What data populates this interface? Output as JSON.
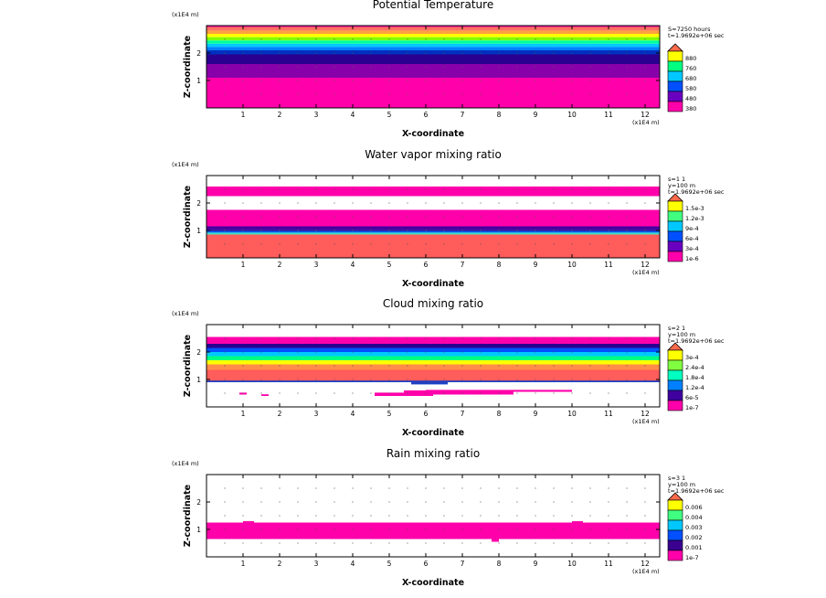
{
  "chart_data": [
    {
      "type": "heatmap",
      "title": "Potential Temperature",
      "xlabel": "X-coordinate",
      "ylabel": "Z-coordinate",
      "x_unit": "(x1E4 m)",
      "y_unit": "(x1E4 m)",
      "xlim": [
        0,
        12.4
      ],
      "ylim": [
        0,
        3.0
      ],
      "x_ticks": [
        1,
        2,
        3,
        4,
        5,
        6,
        7,
        8,
        9,
        10,
        11,
        12
      ],
      "y_ticks": [
        1,
        2
      ],
      "info": [
        "S=7250 hours",
        "t=1.9692e+06 sec"
      ],
      "levels": [
        "880",
        "760",
        "680",
        "580",
        "480",
        "380"
      ],
      "level_colors": [
        "#ffff00",
        "#00ff80",
        "#00c8ff",
        "#0050ff",
        "#6a00c0",
        "#ff00aa"
      ],
      "cap_color": "#ff6a4a",
      "bands": [
        {
          "z0": 0.0,
          "z1": 1.1,
          "color": "#ff00aa"
        },
        {
          "z0": 1.1,
          "z1": 1.6,
          "color": "#8800aa"
        },
        {
          "z0": 1.6,
          "z1": 1.95,
          "color": "#2a0090"
        },
        {
          "z0": 1.95,
          "z1": 2.1,
          "color": "#0030c0"
        },
        {
          "z0": 2.1,
          "z1": 2.22,
          "color": "#0080ff"
        },
        {
          "z0": 2.22,
          "z1": 2.34,
          "color": "#00c8ff"
        },
        {
          "z0": 2.34,
          "z1": 2.46,
          "color": "#00ffa0"
        },
        {
          "z0": 2.46,
          "z1": 2.58,
          "color": "#80ff00"
        },
        {
          "z0": 2.58,
          "z1": 2.7,
          "color": "#ffff00"
        },
        {
          "z0": 2.7,
          "z1": 2.82,
          "color": "#ffa040"
        },
        {
          "z0": 2.82,
          "z1": 2.95,
          "color": "#ff7060"
        },
        {
          "z0": 2.95,
          "z1": 3.0,
          "color": "#ff00aa"
        }
      ],
      "blobs": []
    },
    {
      "type": "heatmap",
      "title": "Water vapor mixing ratio",
      "xlabel": "X-coordinate",
      "ylabel": "Z-coordinate",
      "x_unit": "(x1E4 m)",
      "y_unit": "(x1E4 m)",
      "xlim": [
        0,
        12.4
      ],
      "ylim": [
        0,
        3.0
      ],
      "x_ticks": [
        1,
        2,
        3,
        4,
        5,
        6,
        7,
        8,
        9,
        10,
        11,
        12
      ],
      "y_ticks": [
        1,
        2
      ],
      "info": [
        "s=1 1",
        "y=100 m",
        "t=1.9692e+06 sec"
      ],
      "levels": [
        "1.5e-3",
        "1.2e-3",
        "9e-4",
        "6e-4",
        "3e-4",
        "1e-6"
      ],
      "level_colors": [
        "#ffff00",
        "#40ff80",
        "#00c8ff",
        "#0050ff",
        "#6a00c0",
        "#ff00aa"
      ],
      "cap_color": "#ff6a4a",
      "bands": [
        {
          "z0": 0.0,
          "z1": 0.85,
          "color": "#ff5c5c"
        },
        {
          "z0": 0.85,
          "z1": 0.92,
          "color": "#40e0c0"
        },
        {
          "z0": 0.92,
          "z1": 0.97,
          "color": "#0060ff"
        },
        {
          "z0": 0.97,
          "z1": 1.03,
          "color": "#2010a0"
        },
        {
          "z0": 1.03,
          "z1": 1.15,
          "color": "#4a00a0"
        },
        {
          "z0": 1.15,
          "z1": 1.75,
          "color": "#ff00aa"
        },
        {
          "z0": 2.25,
          "z1": 2.6,
          "color": "#ff00aa"
        }
      ],
      "blobs": []
    },
    {
      "type": "heatmap",
      "title": "Cloud mixing ratio",
      "xlabel": "X-coordinate",
      "ylabel": "Z-coordinate",
      "x_unit": "(x1E4 m)",
      "y_unit": "(x1E4 m)",
      "xlim": [
        0,
        12.4
      ],
      "ylim": [
        0,
        3.0
      ],
      "x_ticks": [
        1,
        2,
        3,
        4,
        5,
        6,
        7,
        8,
        9,
        10,
        11,
        12
      ],
      "y_ticks": [
        1,
        2
      ],
      "info": [
        "s=2 1",
        "y=100 m",
        "t=1.9692e+06 sec"
      ],
      "levels": [
        "3e-4",
        "2.4e-4",
        "1.8e-4",
        "1.2e-4",
        "6e-5",
        "1e-7"
      ],
      "level_colors": [
        "#ffff00",
        "#80ff40",
        "#00ffc0",
        "#0080ff",
        "#4000a0",
        "#ff00aa"
      ],
      "cap_color": "#ff6a4a",
      "bands": [
        {
          "z0": 0.95,
          "z1": 1.35,
          "color": "#ff5c5c"
        },
        {
          "z0": 1.35,
          "z1": 1.55,
          "color": "#ff8c4a"
        },
        {
          "z0": 1.55,
          "z1": 1.7,
          "color": "#ffff00"
        },
        {
          "z0": 1.7,
          "z1": 1.85,
          "color": "#00ff80"
        },
        {
          "z0": 1.85,
          "z1": 2.0,
          "color": "#00c8ff"
        },
        {
          "z0": 2.0,
          "z1": 2.15,
          "color": "#0050ff"
        },
        {
          "z0": 2.15,
          "z1": 2.3,
          "color": "#2a0090"
        },
        {
          "z0": 2.3,
          "z1": 2.55,
          "color": "#ff00aa"
        }
      ],
      "blobs": [
        {
          "x0": 0.0,
          "x1": 12.4,
          "z0": 0.9,
          "z1": 0.96,
          "color": "#2040c0"
        },
        {
          "x0": 5.6,
          "x1": 6.6,
          "z0": 0.82,
          "z1": 0.9,
          "color": "#2040c0"
        },
        {
          "x0": 0.9,
          "x1": 1.1,
          "z0": 0.45,
          "z1": 0.52,
          "color": "#ff00aa"
        },
        {
          "x0": 1.5,
          "x1": 1.7,
          "z0": 0.4,
          "z1": 0.46,
          "color": "#ff00aa"
        },
        {
          "x0": 4.6,
          "x1": 6.2,
          "z0": 0.4,
          "z1": 0.52,
          "color": "#ff00aa"
        },
        {
          "x0": 5.4,
          "x1": 8.4,
          "z0": 0.45,
          "z1": 0.6,
          "color": "#ff00aa"
        },
        {
          "x0": 6.0,
          "x1": 10.0,
          "z0": 0.55,
          "z1": 0.62,
          "color": "#ff00aa"
        }
      ]
    },
    {
      "type": "heatmap",
      "title": "Rain mixing ratio",
      "xlabel": "X-coordinate",
      "ylabel": "Z-coordinate",
      "x_unit": "(x1E4 m)",
      "y_unit": "(x1E4 m)",
      "xlim": [
        0,
        12.4
      ],
      "ylim": [
        0,
        3.0
      ],
      "x_ticks": [
        1,
        2,
        3,
        4,
        5,
        6,
        7,
        8,
        9,
        10,
        11,
        12
      ],
      "y_ticks": [
        1,
        2
      ],
      "info": [
        "s=3 1",
        "y=100 m",
        "t=1.9692e+06 sec"
      ],
      "levels": [
        "0.006",
        "0.004",
        "0.003",
        "0.002",
        "0.001",
        "1e-7"
      ],
      "level_colors": [
        "#ffff00",
        "#40ff80",
        "#00c8ff",
        "#0050ff",
        "#3a0090",
        "#ff00aa"
      ],
      "cap_color": "#ff6a4a",
      "bands": [],
      "blobs": [
        {
          "x0": 0.0,
          "x1": 12.4,
          "z0": 0.65,
          "z1": 1.25,
          "color": "#ff00aa"
        },
        {
          "x0": 7.8,
          "x1": 8.0,
          "z0": 0.55,
          "z1": 0.65,
          "color": "#ff00aa"
        },
        {
          "x0": 1.0,
          "x1": 1.3,
          "z0": 1.25,
          "z1": 1.3,
          "color": "#ff00aa"
        },
        {
          "x0": 10.0,
          "x1": 10.3,
          "z0": 1.25,
          "z1": 1.3,
          "color": "#ff00aa"
        }
      ]
    }
  ]
}
